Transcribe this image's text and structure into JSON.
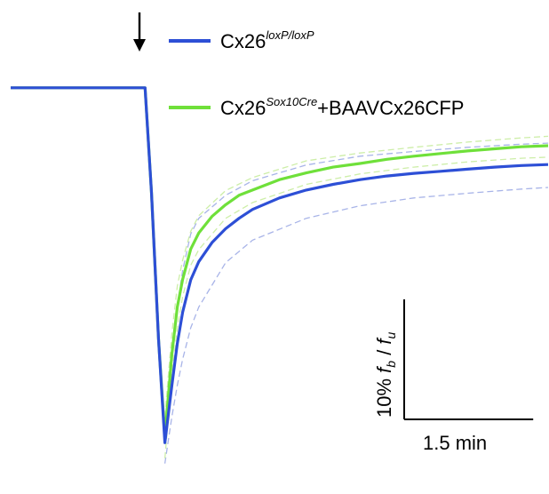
{
  "chart_data": {
    "type": "line",
    "title": "",
    "xlabel": "",
    "ylabel": "",
    "grid": false,
    "legend_position": "top-right",
    "stimulus_marker": "down-arrow",
    "x_unit": "min",
    "y_unit": "% fb/fu",
    "xlim": [
      -2.5,
      7.5
    ],
    "ylim": [
      -70,
      1.5
    ],
    "series": [
      {
        "name_base": "Cx26",
        "name_sup": "loxP/loxP",
        "name_suffix": "",
        "color": "#2d4fd6",
        "style": "solid",
        "x": [
          -2.5,
          -2.0,
          -1.5,
          -1.0,
          -0.5,
          0.0,
          0.12,
          0.25,
          0.37,
          0.5,
          0.6,
          0.7,
          0.85,
          1.0,
          1.25,
          1.5,
          1.75,
          2.0,
          2.5,
          3.0,
          3.5,
          4.0,
          4.5,
          5.0,
          5.5,
          6.0,
          6.5,
          7.0,
          7.5
        ],
        "y": [
          0,
          0,
          0,
          0,
          0,
          0,
          -20,
          -48,
          -68,
          -57,
          -49,
          -43,
          -36.8,
          -33.3,
          -29.6,
          -27,
          -25,
          -23.3,
          -21.1,
          -19.6,
          -18.5,
          -17.6,
          -16.9,
          -16.4,
          -16.0,
          -15.6,
          -15.2,
          -14.9,
          -14.7
        ]
      },
      {
        "name_base": "Cx26",
        "name_sup": "Sox10Cre",
        "name_suffix": "+BAAVCx26CFP",
        "color": "#6fe03a",
        "style": "solid",
        "x": [
          -2.5,
          -2.0,
          -1.5,
          -1.0,
          -0.5,
          0.0,
          0.12,
          0.25,
          0.37,
          0.5,
          0.6,
          0.7,
          0.85,
          1.0,
          1.25,
          1.5,
          1.75,
          2.0,
          2.5,
          3.0,
          3.5,
          4.0,
          4.5,
          5.0,
          5.5,
          6.0,
          6.5,
          7.0,
          7.5
        ],
        "y": [
          0,
          0,
          0,
          0,
          0,
          0,
          -20,
          -48,
          -67,
          -51,
          -42,
          -36.7,
          -30.9,
          -27.8,
          -24.6,
          -22.4,
          -20.6,
          -19.6,
          -17.6,
          -16.3,
          -15.2,
          -14.5,
          -13.7,
          -13.1,
          -12.6,
          -12.1,
          -11.7,
          -11.3,
          -11.1
        ]
      }
    ],
    "error_bands": [
      {
        "color": "#a8b4e8",
        "style": "dashed",
        "x": [
          0.37,
          0.5,
          0.6,
          0.7,
          0.85,
          1.0,
          1.5,
          2.0,
          3.0,
          4.0,
          5.0,
          6.0,
          7.0,
          7.5
        ],
        "y": [
          -72,
          -63,
          -57,
          -52,
          -46,
          -42,
          -33.5,
          -29.2,
          -25,
          -22.6,
          -21.1,
          -20.2,
          -19.4,
          -19.1
        ]
      },
      {
        "color": "#a8b4e8",
        "style": "dashed",
        "x": [
          0.37,
          0.5,
          0.6,
          0.7,
          0.85,
          1.0,
          1.5,
          2.0,
          3.0,
          4.0,
          5.0,
          6.0,
          7.0,
          7.5
        ],
        "y": [
          -64,
          -51,
          -42,
          -35,
          -28,
          -25,
          -20.6,
          -17.8,
          -14.8,
          -13.1,
          -12.2,
          -11.4,
          -10.8,
          -10.6
        ]
      },
      {
        "color": "#cdeea8",
        "style": "dashed",
        "x": [
          0.37,
          0.5,
          0.6,
          0.7,
          0.85,
          1.0,
          1.5,
          2.0,
          3.0,
          4.0,
          5.0,
          6.0,
          7.0,
          7.5
        ],
        "y": [
          -71,
          -55,
          -46,
          -40,
          -34,
          -31,
          -25,
          -22,
          -18.5,
          -16.5,
          -15.2,
          -14.2,
          -13.5,
          -13.3
        ]
      },
      {
        "color": "#cdeea8",
        "style": "dashed",
        "x": [
          0.37,
          0.5,
          0.6,
          0.7,
          0.85,
          1.0,
          1.5,
          2.0,
          3.0,
          4.0,
          5.0,
          6.0,
          7.0,
          7.5
        ],
        "y": [
          -63,
          -47,
          -38,
          -33,
          -27.5,
          -24.5,
          -19.7,
          -17.2,
          -14,
          -12.5,
          -11.4,
          -10.4,
          -9.6,
          -9.3
        ]
      }
    ],
    "scale_bar": {
      "x_label": "1.5 min",
      "x_value": 1.5,
      "y_label_prefix": "10% ",
      "y_label_f1": "f",
      "y_label_sub1": "b",
      "y_label_mid": " / ",
      "y_label_f2": "f",
      "y_label_sub2": "u",
      "y_value": 10
    }
  }
}
